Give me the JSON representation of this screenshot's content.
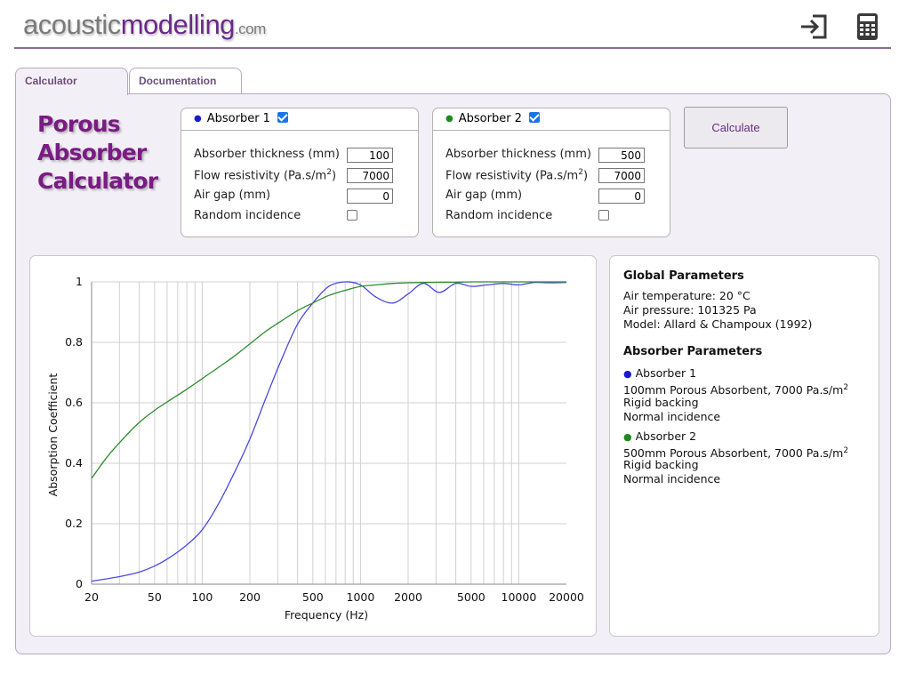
{
  "header": {
    "logo_part1": "acoustic",
    "logo_part2": "modelling",
    "logo_part3": ".com"
  },
  "tabs": [
    {
      "label": "Calculator",
      "active": true
    },
    {
      "label": "Documentation",
      "active": false
    }
  ],
  "title": {
    "line1": "Porous",
    "line2": "Absorber",
    "line3": "Calculator"
  },
  "absorbers": [
    {
      "label": "Absorber 1",
      "color": "#1a1acc",
      "enabled": true,
      "thickness_label": "Absorber thickness (mm)",
      "thickness": "100",
      "flow_label_prefix": "Flow resistivity (Pa.s/m",
      "flow_label_sup": "2",
      "flow_label_suffix": ")",
      "flow": "7000",
      "airgap_label": "Air gap (mm)",
      "airgap": "0",
      "random_label": "Random incidence",
      "random": false
    },
    {
      "label": "Absorber 2",
      "color": "#1e8a1e",
      "enabled": true,
      "thickness_label": "Absorber thickness (mm)",
      "thickness": "500",
      "flow_label_prefix": "Flow resistivity (Pa.s/m",
      "flow_label_sup": "2",
      "flow_label_suffix": ")",
      "flow": "7000",
      "airgap_label": "Air gap (mm)",
      "airgap": "0",
      "random_label": "Random incidence",
      "random": false
    }
  ],
  "calculate_label": "Calculate",
  "info": {
    "global_heading": "Global Parameters",
    "air_temp": "Air temperature: 20 °C",
    "air_pressure": "Air pressure: 101325 Pa",
    "model": "Model: Allard & Champoux (1992)",
    "absorber_heading": "Absorber Parameters",
    "abs1_name": "Absorber 1",
    "abs1_desc_prefix": "100mm Porous Absorbent, 7000 Pa.s/m",
    "abs1_sup": "2",
    "abs1_backing": "Rigid backing",
    "abs1_incidence": "Normal incidence",
    "abs2_name": "Absorber 2",
    "abs2_desc_prefix": "500mm Porous Absorbent, 7000 Pa.s/m",
    "abs2_sup": "2",
    "abs2_backing": "Rigid backing",
    "abs2_incidence": "Normal incidence"
  },
  "chart_data": {
    "type": "line",
    "xlabel": "Frequency (Hz)",
    "ylabel": "Absorption Coefficient",
    "x_scale": "log",
    "xlim": [
      20,
      20000
    ],
    "ylim": [
      0,
      1
    ],
    "x_ticks": [
      20,
      50,
      100,
      200,
      500,
      1000,
      2000,
      5000,
      10000,
      20000
    ],
    "x_tick_labels": [
      "20",
      "50",
      "100",
      "200",
      "500",
      "1000",
      "2000",
      "5000",
      "10000",
      "20000"
    ],
    "y_ticks": [
      0,
      0.2,
      0.4,
      0.6,
      0.8,
      1
    ],
    "y_tick_labels": [
      "0",
      "0.2",
      "0.4",
      "0.6",
      "0.8",
      "1"
    ],
    "grid": true,
    "legend": "none",
    "series": [
      {
        "color": "#4a4ae0",
        "x": [
          20,
          30,
          40,
          50,
          63,
          80,
          100,
          125,
          160,
          200,
          250,
          315,
          400,
          500,
          630,
          800,
          1000,
          1250,
          1600,
          2000,
          2500,
          3150,
          4000,
          5000,
          6300,
          8000,
          10000,
          12500,
          16000,
          20000
        ],
        "y": [
          0.01,
          0.025,
          0.04,
          0.06,
          0.09,
          0.13,
          0.18,
          0.26,
          0.37,
          0.48,
          0.61,
          0.74,
          0.86,
          0.93,
          0.985,
          1.0,
          0.99,
          0.95,
          0.93,
          0.96,
          0.995,
          0.965,
          0.995,
          0.985,
          0.99,
          0.995,
          0.99,
          0.998,
          0.997,
          0.998
        ]
      },
      {
        "color": "#2e8b2e",
        "x": [
          20,
          25,
          31.5,
          40,
          50,
          63,
          80,
          100,
          125,
          160,
          200,
          250,
          315,
          400,
          500,
          630,
          800,
          1000,
          1250,
          1600,
          2000,
          2500,
          3150,
          4000,
          5000,
          8000,
          12500,
          20000
        ],
        "y": [
          0.35,
          0.42,
          0.48,
          0.535,
          0.575,
          0.61,
          0.645,
          0.68,
          0.715,
          0.755,
          0.795,
          0.835,
          0.87,
          0.905,
          0.93,
          0.955,
          0.972,
          0.985,
          0.99,
          0.995,
          0.997,
          0.998,
          0.999,
          0.999,
          1.0,
          1.0,
          1.0,
          1.0
        ]
      }
    ]
  }
}
